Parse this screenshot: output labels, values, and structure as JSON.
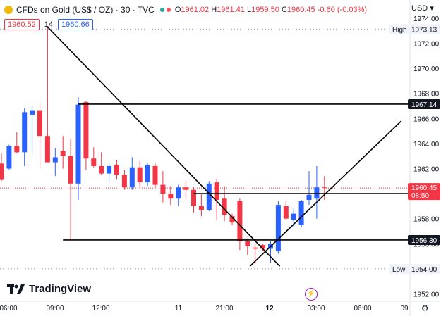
{
  "header": {
    "symbol": "CFDs on Gold (US$ / OZ) · 30 · TVC",
    "ohlc": {
      "o": "1961.02",
      "h": "1961.41",
      "l": "1959.50",
      "c": "1960.45",
      "chg": "-0.60 (-0.03%)"
    },
    "bid": "1960.52",
    "spread": "14",
    "ask": "1960.66",
    "currency": "USD"
  },
  "branding": {
    "logo_text": "TradingView"
  },
  "colors": {
    "up": "#2962ff",
    "down": "#f23645",
    "text": "#131722",
    "price_tag": "#f23645"
  },
  "chart_data": {
    "type": "candlestick",
    "ylim": [
      1951.3,
      1975.0
    ],
    "y_ticks": [
      "1974.00",
      "1972.00",
      "1970.00",
      "1968.00",
      "1966.00",
      "1964.00",
      "1962.00",
      "1960.00",
      "1958.00",
      "1956.00",
      "1954.00",
      "1952.00"
    ],
    "x_ticks": [
      "06:00",
      "09:00",
      "12:00",
      "11",
      "21:00",
      "12",
      "03:00",
      "06:00",
      "09"
    ],
    "candles": [
      {
        "o": 1962.4,
        "h": 1963.2,
        "l": 1961.0,
        "c": 1961.1
      },
      {
        "o": 1962.0,
        "h": 1963.9,
        "l": 1961.9,
        "c": 1963.8
      },
      {
        "o": 1963.8,
        "h": 1964.9,
        "l": 1963.2,
        "c": 1963.3
      },
      {
        "o": 1963.3,
        "h": 1966.8,
        "l": 1962.2,
        "c": 1966.5
      },
      {
        "o": 1966.3,
        "h": 1967.0,
        "l": 1963.3,
        "c": 1966.6
      },
      {
        "o": 1966.6,
        "h": 1967.2,
        "l": 1962.1,
        "c": 1964.6
      },
      {
        "o": 1964.6,
        "h": 1973.3,
        "l": 1962.5,
        "c": 1962.5
      },
      {
        "o": 1962.5,
        "h": 1963.6,
        "l": 1961.4,
        "c": 1962.9
      },
      {
        "o": 1963.4,
        "h": 1964.6,
        "l": 1962.0,
        "c": 1963.0
      },
      {
        "o": 1963.0,
        "h": 1964.4,
        "l": 1956.3,
        "c": 1960.8
      },
      {
        "o": 1960.8,
        "h": 1967.7,
        "l": 1959.5,
        "c": 1967.1
      },
      {
        "o": 1967.3,
        "h": 1967.4,
        "l": 1961.9,
        "c": 1962.8
      },
      {
        "o": 1962.8,
        "h": 1963.7,
        "l": 1962.1,
        "c": 1962.2
      },
      {
        "o": 1962.2,
        "h": 1963.3,
        "l": 1961.5,
        "c": 1961.6
      },
      {
        "o": 1961.6,
        "h": 1962.5,
        "l": 1960.9,
        "c": 1962.2
      },
      {
        "o": 1962.3,
        "h": 1962.7,
        "l": 1961.1,
        "c": 1961.5
      },
      {
        "o": 1961.5,
        "h": 1961.9,
        "l": 1960.3,
        "c": 1960.5
      },
      {
        "o": 1960.5,
        "h": 1962.9,
        "l": 1960.3,
        "c": 1962.1
      },
      {
        "o": 1962.1,
        "h": 1962.6,
        "l": 1960.4,
        "c": 1960.9
      },
      {
        "o": 1960.9,
        "h": 1962.4,
        "l": 1960.6,
        "c": 1962.3
      },
      {
        "o": 1962.2,
        "h": 1962.4,
        "l": 1960.4,
        "c": 1960.7
      },
      {
        "o": 1960.7,
        "h": 1961.8,
        "l": 1959.3,
        "c": 1960.0
      },
      {
        "o": 1960.0,
        "h": 1960.6,
        "l": 1959.1,
        "c": 1959.6
      },
      {
        "o": 1959.6,
        "h": 1960.7,
        "l": 1959.0,
        "c": 1960.5
      },
      {
        "o": 1960.5,
        "h": 1961.0,
        "l": 1959.6,
        "c": 1960.3
      },
      {
        "o": 1960.3,
        "h": 1960.5,
        "l": 1958.5,
        "c": 1959.0
      },
      {
        "o": 1959.0,
        "h": 1960.0,
        "l": 1958.2,
        "c": 1958.7
      },
      {
        "o": 1958.7,
        "h": 1961.0,
        "l": 1958.6,
        "c": 1960.8
      },
      {
        "o": 1960.9,
        "h": 1961.2,
        "l": 1957.9,
        "c": 1959.5
      },
      {
        "o": 1959.6,
        "h": 1960.6,
        "l": 1957.8,
        "c": 1958.3
      },
      {
        "o": 1958.2,
        "h": 1958.4,
        "l": 1957.5,
        "c": 1957.7
      },
      {
        "o": 1959.4,
        "h": 1959.6,
        "l": 1955.5,
        "c": 1956.2
      },
      {
        "o": 1956.2,
        "h": 1956.4,
        "l": 1955.1,
        "c": 1955.8
      },
      {
        "o": 1955.7,
        "h": 1956.0,
        "l": 1954.4,
        "c": 1955.6
      },
      {
        "o": 1955.9,
        "h": 1956.0,
        "l": 1955.4,
        "c": 1955.6
      },
      {
        "o": 1955.6,
        "h": 1956.2,
        "l": 1954.5,
        "c": 1956.0
      },
      {
        "o": 1955.4,
        "h": 1959.4,
        "l": 1955.2,
        "c": 1959.1
      },
      {
        "o": 1959.0,
        "h": 1959.4,
        "l": 1957.9,
        "c": 1958.0
      },
      {
        "o": 1957.9,
        "h": 1958.8,
        "l": 1957.3,
        "c": 1958.4
      },
      {
        "o": 1957.5,
        "h": 1959.5,
        "l": 1957.3,
        "c": 1959.4
      },
      {
        "o": 1959.5,
        "h": 1961.8,
        "l": 1959.1,
        "c": 1959.9
      },
      {
        "o": 1959.6,
        "h": 1962.2,
        "l": 1958.0,
        "c": 1960.5
      },
      {
        "o": 1960.5,
        "h": 1961.4,
        "l": 1959.5,
        "c": 1960.45
      }
    ],
    "horizontal_lines": [
      1967.14,
      1960.0,
      1956.3
    ],
    "trend_lines": [
      {
        "from": [
          6,
          1973.3
        ],
        "to": [
          36.2,
          1954.2
        ]
      },
      {
        "from": [
          32.3,
          1954.2
        ],
        "to": [
          52.0,
          1965.8
        ]
      }
    ],
    "price_labels": [
      {
        "text": "High",
        "value": "1973.13",
        "y": 1973.13
      },
      {
        "text": "",
        "value": "1967.14",
        "y": 1967.14
      },
      {
        "text": "",
        "value": "1960.45",
        "sub": "08:50",
        "y": 1960.45,
        "kind": "current"
      },
      {
        "text": "",
        "value": "1956.30",
        "y": 1956.3
      },
      {
        "text": "Low",
        "value": "1954.00",
        "y": 1954.0
      }
    ],
    "legend": "none",
    "grid": false
  }
}
